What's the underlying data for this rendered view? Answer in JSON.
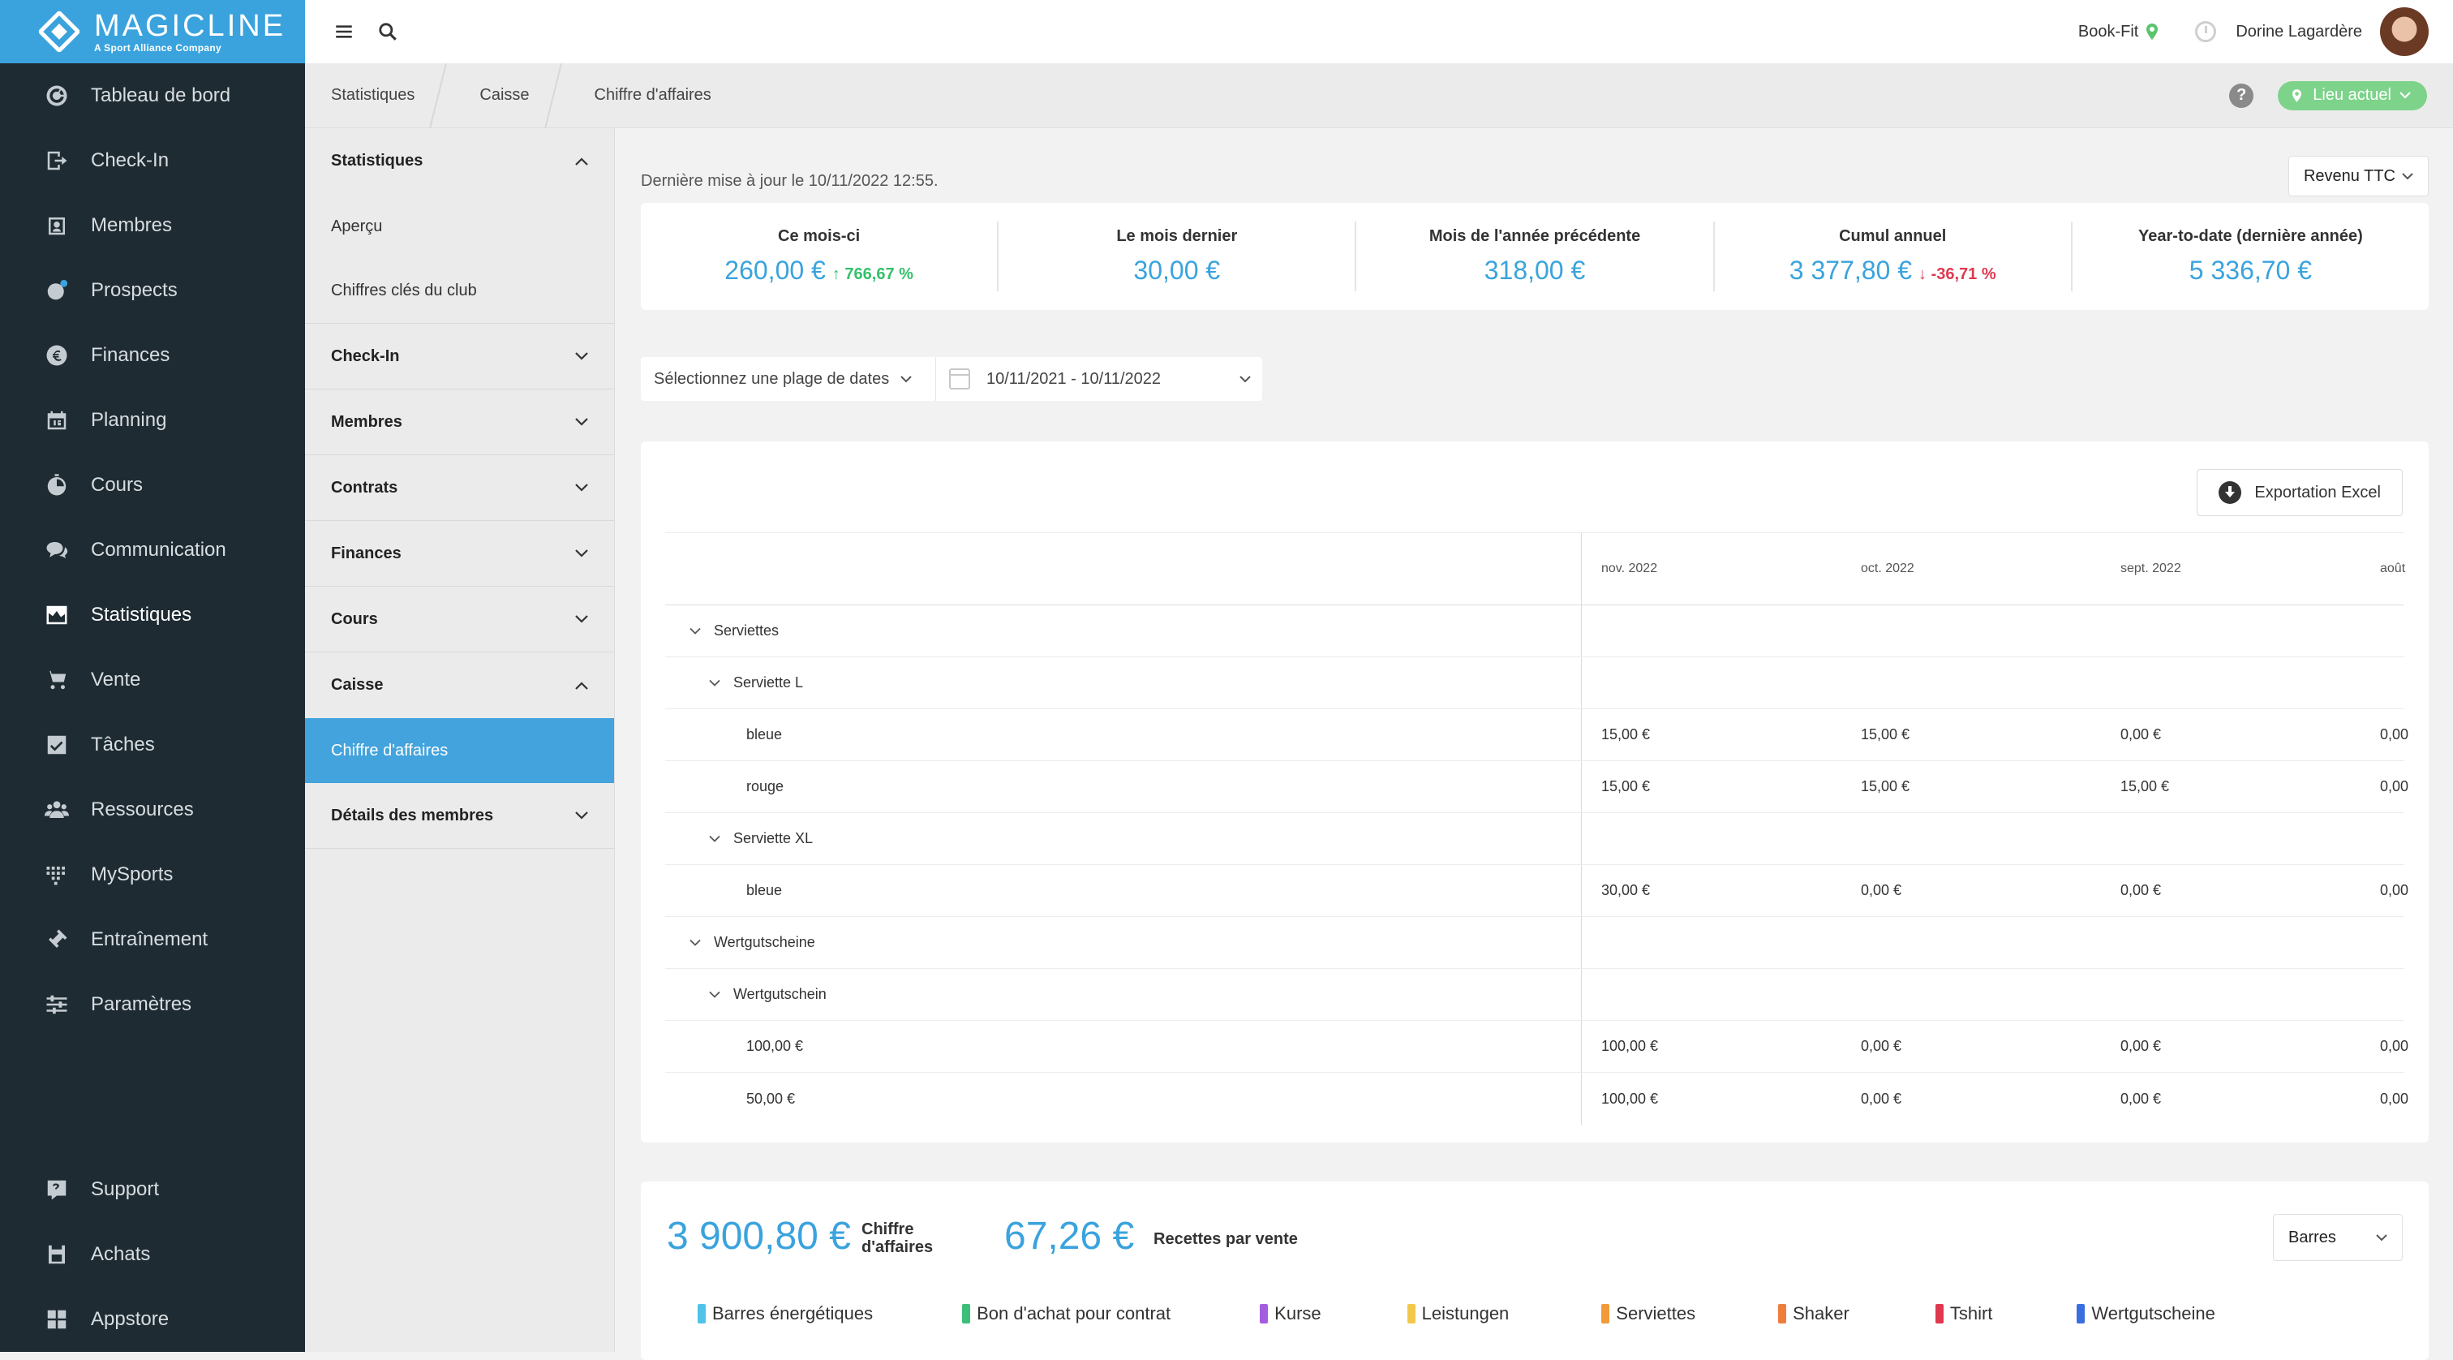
{
  "brand": {
    "name": "MAGICLINE",
    "tagline": "A Sport Alliance Company"
  },
  "sidebar": {
    "items": [
      {
        "label": "Tableau de bord",
        "icon": "dashboard-icon"
      },
      {
        "label": "Check-In",
        "icon": "checkin-icon"
      },
      {
        "label": "Membres",
        "icon": "members-icon"
      },
      {
        "label": "Prospects",
        "icon": "prospects-icon"
      },
      {
        "label": "Finances",
        "icon": "euro-icon"
      },
      {
        "label": "Planning",
        "icon": "calendar-icon"
      },
      {
        "label": "Cours",
        "icon": "stopwatch-icon"
      },
      {
        "label": "Communication",
        "icon": "chat-icon"
      },
      {
        "label": "Statistiques",
        "icon": "chart-icon"
      },
      {
        "label": "Vente",
        "icon": "cart-icon"
      },
      {
        "label": "Tâches",
        "icon": "task-check-icon"
      },
      {
        "label": "Ressources",
        "icon": "resources-icon"
      },
      {
        "label": "MySports",
        "icon": "mysports-icon"
      },
      {
        "label": "Entraînement",
        "icon": "dumbbell-icon"
      },
      {
        "label": "Paramètres",
        "icon": "sliders-icon"
      }
    ],
    "bottom": [
      {
        "label": "Support",
        "icon": "support-icon"
      },
      {
        "label": "Achats",
        "icon": "store-icon"
      },
      {
        "label": "Appstore",
        "icon": "apps-icon"
      }
    ]
  },
  "topbar": {
    "club": "Book-Fit",
    "user": "Dorine Lagardère"
  },
  "breadcrumb": [
    "Statistiques",
    "Caisse",
    "Chiffre d'affaires"
  ],
  "location_button": "Lieu actuel",
  "subnav": {
    "statistiques": "Statistiques",
    "apercu": "Aperçu",
    "chiffres_cles": "Chiffres clés du club",
    "checkin": "Check-In",
    "membres": "Membres",
    "contrats": "Contrats",
    "finances": "Finances",
    "cours": "Cours",
    "caisse": "Caisse",
    "chiffre_affaires": "Chiffre d'affaires",
    "details_membres": "Détails des membres"
  },
  "main": {
    "updated": "Dernière mise à jour le 10/11/2022 12:55.",
    "revenue_type": "Revenu TTC",
    "kpis": [
      {
        "label": "Ce mois-ci",
        "value": "260,00 €",
        "delta": "↑ 766,67 %",
        "trend": "up"
      },
      {
        "label": "Le mois dernier",
        "value": "30,00 €",
        "delta": "",
        "trend": ""
      },
      {
        "label": "Mois de l'année précédente",
        "value": "318,00 €",
        "delta": "",
        "trend": ""
      },
      {
        "label": "Cumul annuel",
        "value": "3 377,80 €",
        "delta": "↓ -36,71 %",
        "trend": "down"
      },
      {
        "label": "Year-to-date (dernière année)",
        "value": "5 336,70 €",
        "delta": "",
        "trend": ""
      }
    ],
    "date_range_type": "Sélectionnez une plage de dates",
    "date_range": "10/11/2021 - 10/11/2022",
    "export_label": "Exportation Excel"
  },
  "table": {
    "columns": [
      "nov. 2022",
      "oct. 2022",
      "sept. 2022",
      "août"
    ],
    "rows": [
      {
        "label": "Serviettes",
        "values": [
          "",
          "",
          "",
          ""
        ]
      },
      {
        "label": "Serviette L",
        "values": [
          "",
          "",
          "",
          ""
        ]
      },
      {
        "label": "bleue",
        "values": [
          "15,00 €",
          "15,00 €",
          "0,00 €",
          "0,00"
        ]
      },
      {
        "label": "rouge",
        "values": [
          "15,00 €",
          "15,00 €",
          "15,00 €",
          "0,00"
        ]
      },
      {
        "label": "Serviette XL",
        "values": [
          "",
          "",
          "",
          ""
        ]
      },
      {
        "label": "bleue",
        "values": [
          "30,00 €",
          "0,00 €",
          "0,00 €",
          "0,00"
        ]
      },
      {
        "label": "Wertgutscheine",
        "values": [
          "",
          "",
          "",
          ""
        ]
      },
      {
        "label": "Wertgutschein",
        "values": [
          "",
          "",
          "",
          ""
        ]
      },
      {
        "label": "100,00 €",
        "values": [
          "100,00 €",
          "0,00 €",
          "0,00 €",
          "0,00"
        ]
      },
      {
        "label": "50,00 €",
        "values": [
          "100,00 €",
          "0,00 €",
          "0,00 €",
          "0,00"
        ]
      }
    ]
  },
  "summary": {
    "revenue_value": "3 900,80 €",
    "revenue_caption_1": "Chiffre",
    "revenue_caption_2": "d'affaires",
    "per_sale_value": "67,26 €",
    "per_sale_caption": "Recettes par vente",
    "chart_type": "Barres",
    "legend": [
      {
        "label": "Barres énergétiques",
        "color": "#4fc3e8"
      },
      {
        "label": "Bon d'achat pour contrat",
        "color": "#3cbf78"
      },
      {
        "label": "Kurse",
        "color": "#a55de0"
      },
      {
        "label": "Leistungen",
        "color": "#f2c84b"
      },
      {
        "label": "Serviettes",
        "color": "#f29a3a"
      },
      {
        "label": "Shaker",
        "color": "#ef7d3c"
      },
      {
        "label": "Tshirt",
        "color": "#e0384f"
      },
      {
        "label": "Wertgutscheine",
        "color": "#3a6ee0"
      }
    ]
  }
}
